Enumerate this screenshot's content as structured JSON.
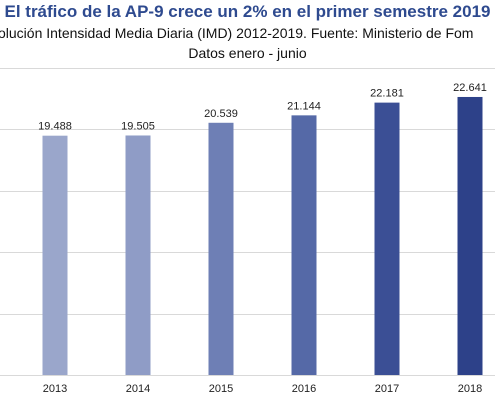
{
  "chart_data": {
    "type": "bar",
    "title": "El tráfico de la AP-9 crece un 2% en el primer semestre 2019",
    "subtitle": "olución Intensidad Media Diaria (IMD) 2012-2019. Fuente: Ministerio de Fom",
    "subtitle2": "Datos enero - junio",
    "categories": [
      "2013",
      "2014",
      "2015",
      "2016",
      "2017",
      "2018"
    ],
    "values": [
      19488,
      19505,
      20539,
      21144,
      22181,
      22641
    ],
    "value_labels": [
      "19.488",
      "19.505",
      "20.539",
      "21.144",
      "22.181",
      "22.641"
    ],
    "ylim": [
      0,
      25000
    ],
    "grid": true,
    "xlabel": "",
    "ylabel": ""
  },
  "colors": {
    "title": "#2e4a8f",
    "bars": [
      "#9aa6cb",
      "#8f9cc6",
      "#6e7fb5",
      "#5569a7",
      "#3b4f95",
      "#2d4189"
    ]
  }
}
